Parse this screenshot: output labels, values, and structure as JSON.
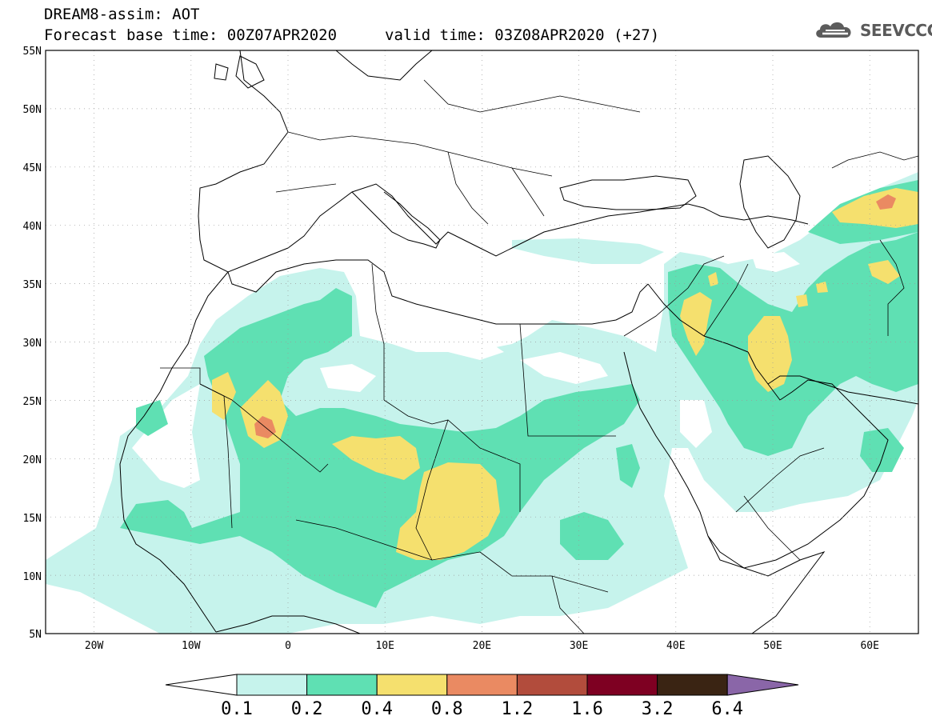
{
  "header": {
    "title_line1": "DREAM8-assim: AOT",
    "title_line2": "Forecast base time: 00Z07APR2020",
    "valid_time": "valid time: 03Z08APR2020 (+27)",
    "logo_text": "SEEVCCC",
    "logo_icon": "cloud-icon"
  },
  "map": {
    "lat_labels": [
      "55N",
      "50N",
      "45N",
      "40N",
      "35N",
      "30N",
      "25N",
      "20N",
      "15N",
      "10N",
      "5N"
    ],
    "lon_labels": [
      "20W",
      "10W",
      "0",
      "10E",
      "20E",
      "30E",
      "40E",
      "50E",
      "60E"
    ],
    "extent": {
      "lon_min": -25,
      "lon_max": 65,
      "lat_min": 5,
      "lat_max": 55
    },
    "grid": "dotted",
    "coastlines": true,
    "borders": true
  },
  "colorbar": {
    "levels": [
      "0.1",
      "0.2",
      "0.4",
      "0.8",
      "1.2",
      "1.6",
      "3.2",
      "6.4"
    ],
    "colors": [
      "#ffffff",
      "#c6f3ec",
      "#5fe0b3",
      "#f5e06e",
      "#ea8a62",
      "#b24c3c",
      "#7e0022",
      "#3a2413",
      "#8a66a8"
    ]
  },
  "shading_colors": {
    "c01": "#c6f3ec",
    "c02": "#5fe0b3",
    "c04": "#f5e06e",
    "c08": "#ea8a62"
  }
}
